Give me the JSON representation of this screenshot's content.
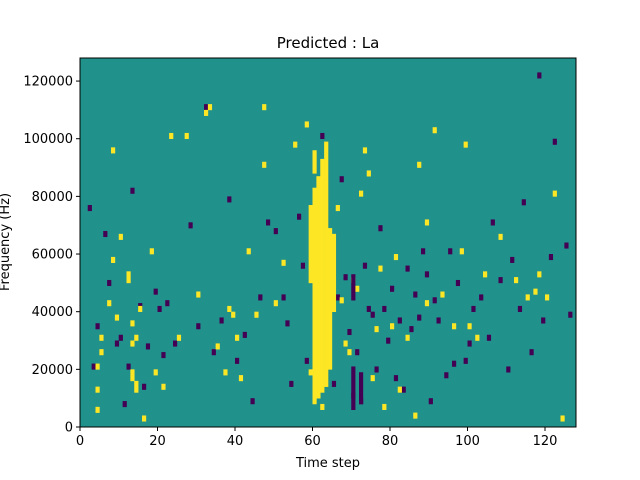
{
  "chart_data": {
    "type": "heatmap",
    "title": "Predicted : La",
    "xlabel": "Time step",
    "ylabel": "Frequency (Hz)",
    "xlim": [
      0,
      128
    ],
    "ylim": [
      0,
      128000
    ],
    "x_ticks": [
      0,
      20,
      40,
      60,
      80,
      100,
      120
    ],
    "x_tick_labels": [
      "0",
      "20",
      "40",
      "60",
      "80",
      "100",
      "120"
    ],
    "y_ticks": [
      0,
      20000,
      40000,
      60000,
      80000,
      100000,
      120000
    ],
    "y_tick_labels": [
      "0",
      "20000",
      "40000",
      "60000",
      "80000",
      "100000",
      "120000"
    ],
    "n_time_steps": 128,
    "n_freq_bins": 128,
    "colormap": "viridis",
    "colors": {
      "low": "#440154",
      "mid": "#21918c",
      "high": "#fde725"
    },
    "background_level": "mid",
    "grid": false,
    "high_cells": [
      [
        4,
        5
      ],
      [
        4,
        12
      ],
      [
        4,
        20
      ],
      [
        5,
        25
      ],
      [
        5,
        30
      ],
      [
        7,
        42
      ],
      [
        8,
        57
      ],
      [
        8,
        95
      ],
      [
        9,
        37
      ],
      [
        10,
        65
      ],
      [
        12,
        50
      ],
      [
        12,
        52
      ],
      [
        13,
        35
      ],
      [
        13,
        28
      ],
      [
        13,
        18
      ],
      [
        13,
        16
      ],
      [
        14,
        14
      ],
      [
        14,
        12
      ],
      [
        14,
        30
      ],
      [
        15,
        40
      ],
      [
        16,
        2
      ],
      [
        18,
        60
      ],
      [
        19,
        18
      ],
      [
        21,
        13
      ],
      [
        23,
        100
      ],
      [
        25,
        30
      ],
      [
        27,
        100
      ],
      [
        30,
        45
      ],
      [
        32,
        108
      ],
      [
        33,
        110
      ],
      [
        35,
        27
      ],
      [
        37,
        18
      ],
      [
        38,
        40
      ],
      [
        39,
        38
      ],
      [
        40,
        30
      ],
      [
        41,
        16
      ],
      [
        43,
        60
      ],
      [
        45,
        38
      ],
      [
        47,
        110
      ],
      [
        47,
        90
      ],
      [
        50,
        42
      ],
      [
        52,
        56
      ],
      [
        55,
        97
      ],
      [
        58,
        104
      ],
      [
        59,
        18
      ],
      [
        60,
        25
      ],
      [
        61,
        30
      ],
      [
        62,
        6
      ],
      [
        66,
        75
      ],
      [
        67,
        43
      ],
      [
        68,
        28
      ],
      [
        69,
        25
      ],
      [
        70,
        50
      ],
      [
        71,
        47
      ],
      [
        72,
        80
      ],
      [
        73,
        95
      ],
      [
        74,
        87
      ],
      [
        75,
        16
      ],
      [
        76,
        33
      ],
      [
        77,
        54
      ],
      [
        78,
        6
      ],
      [
        80,
        34
      ],
      [
        81,
        58
      ],
      [
        82,
        12
      ],
      [
        84,
        30
      ],
      [
        86,
        3
      ],
      [
        87,
        90
      ],
      [
        89,
        42
      ],
      [
        89,
        70
      ],
      [
        91,
        102
      ],
      [
        93,
        45
      ],
      [
        96,
        34
      ],
      [
        98,
        60
      ],
      [
        99,
        97
      ],
      [
        100,
        34
      ],
      [
        102,
        30
      ],
      [
        104,
        52
      ],
      [
        108,
        65
      ],
      [
        112,
        50
      ],
      [
        115,
        44
      ],
      [
        117,
        46
      ],
      [
        118,
        52
      ],
      [
        120,
        44
      ],
      [
        122,
        80
      ],
      [
        124,
        2
      ]
    ],
    "low_cells": [
      [
        2,
        75
      ],
      [
        3,
        20
      ],
      [
        4,
        34
      ],
      [
        6,
        66
      ],
      [
        7,
        49
      ],
      [
        9,
        28
      ],
      [
        10,
        30
      ],
      [
        11,
        7
      ],
      [
        12,
        20
      ],
      [
        13,
        81
      ],
      [
        15,
        41
      ],
      [
        16,
        13
      ],
      [
        17,
        27
      ],
      [
        19,
        46
      ],
      [
        20,
        40
      ],
      [
        21,
        24
      ],
      [
        22,
        42
      ],
      [
        24,
        28
      ],
      [
        28,
        69
      ],
      [
        30,
        34
      ],
      [
        32,
        110
      ],
      [
        34,
        25
      ],
      [
        36,
        36
      ],
      [
        38,
        78
      ],
      [
        40,
        22
      ],
      [
        42,
        31
      ],
      [
        44,
        8
      ],
      [
        46,
        44
      ],
      [
        48,
        70
      ],
      [
        50,
        67
      ],
      [
        52,
        44
      ],
      [
        53,
        35
      ],
      [
        54,
        14
      ],
      [
        56,
        72
      ],
      [
        57,
        55
      ],
      [
        58,
        22
      ],
      [
        60,
        37
      ],
      [
        61,
        28
      ],
      [
        62,
        100
      ],
      [
        64,
        56
      ],
      [
        65,
        14
      ],
      [
        66,
        44
      ],
      [
        67,
        85
      ],
      [
        68,
        51
      ],
      [
        69,
        32
      ],
      [
        70,
        10
      ],
      [
        71,
        25
      ],
      [
        72,
        8
      ],
      [
        73,
        55
      ],
      [
        74,
        40
      ],
      [
        75,
        38
      ],
      [
        76,
        19
      ],
      [
        77,
        68
      ],
      [
        78,
        40
      ],
      [
        79,
        29
      ],
      [
        80,
        47
      ],
      [
        81,
        16
      ],
      [
        82,
        36
      ],
      [
        83,
        12
      ],
      [
        84,
        54
      ],
      [
        85,
        33
      ],
      [
        86,
        45
      ],
      [
        87,
        37
      ],
      [
        88,
        60
      ],
      [
        89,
        52
      ],
      [
        90,
        8
      ],
      [
        91,
        43
      ],
      [
        92,
        36
      ],
      [
        94,
        17
      ],
      [
        95,
        60
      ],
      [
        96,
        21
      ],
      [
        97,
        49
      ],
      [
        99,
        22
      ],
      [
        100,
        28
      ],
      [
        101,
        40
      ],
      [
        103,
        44
      ],
      [
        105,
        30
      ],
      [
        106,
        70
      ],
      [
        108,
        50
      ],
      [
        110,
        19
      ],
      [
        111,
        57
      ],
      [
        113,
        40
      ],
      [
        114,
        77
      ],
      [
        116,
        25
      ],
      [
        118,
        121
      ],
      [
        119,
        36
      ],
      [
        121,
        58
      ],
      [
        122,
        98
      ],
      [
        125,
        62
      ],
      [
        126,
        38
      ]
    ],
    "high_columns": [
      {
        "t": 59,
        "bins": [
          [
            50,
            76
          ]
        ]
      },
      {
        "t": 60,
        "bins": [
          [
            8,
            82
          ],
          [
            88,
            95
          ]
        ]
      },
      {
        "t": 61,
        "bins": [
          [
            10,
            86
          ]
        ]
      },
      {
        "t": 62,
        "bins": [
          [
            12,
            92
          ]
        ]
      },
      {
        "t": 63,
        "bins": [
          [
            14,
            98
          ]
        ]
      },
      {
        "t": 64,
        "bins": [
          [
            20,
            68
          ]
        ]
      },
      {
        "t": 65,
        "bins": [
          [
            40,
            66
          ]
        ]
      }
    ],
    "low_columns": [
      {
        "t": 70,
        "bins": [
          [
            6,
            20
          ],
          [
            44,
            52
          ]
        ]
      },
      {
        "t": 72,
        "bins": [
          [
            8,
            18
          ]
        ]
      }
    ]
  }
}
